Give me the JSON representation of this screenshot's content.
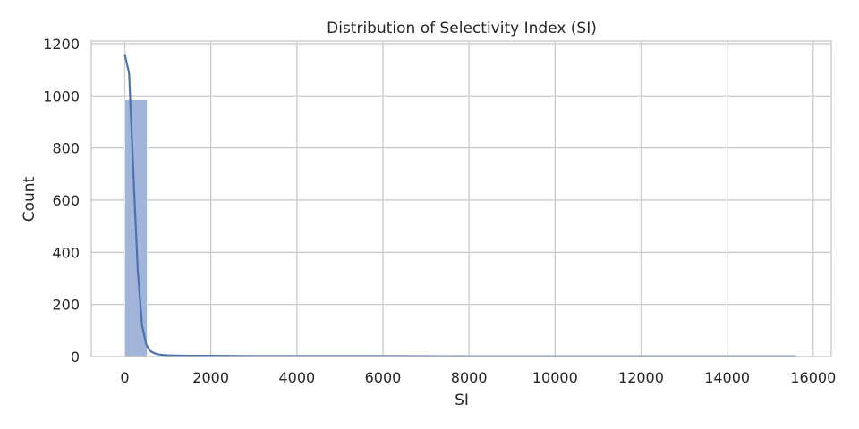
{
  "chart_data": {
    "type": "bar",
    "title": "Distribution of Selectivity Index (SI)",
    "xlabel": "SI",
    "ylabel": "Count",
    "xlim": [
      -780,
      16420
    ],
    "ylim": [
      0,
      1210
    ],
    "x_ticks": [
      0,
      2000,
      4000,
      6000,
      8000,
      10000,
      12000,
      14000,
      16000
    ],
    "x_tick_labels": [
      "0",
      "2000",
      "4000",
      "6000",
      "8000",
      "10000",
      "12000",
      "14000",
      "16000"
    ],
    "y_ticks": [
      0,
      200,
      400,
      600,
      800,
      1000,
      1200
    ],
    "y_tick_labels": [
      "0",
      "200",
      "400",
      "600",
      "800",
      "1000",
      "1200"
    ],
    "grid": true,
    "bin_width": 520,
    "bins": [
      {
        "x0": 0,
        "count": 985
      },
      {
        "x0": 520,
        "count": 3
      },
      {
        "x0": 1040,
        "count": 2
      },
      {
        "x0": 1560,
        "count": 2
      },
      {
        "x0": 2080,
        "count": 1
      },
      {
        "x0": 2600,
        "count": 1
      },
      {
        "x0": 3120,
        "count": 1
      },
      {
        "x0": 3640,
        "count": 1
      },
      {
        "x0": 4160,
        "count": 1
      },
      {
        "x0": 4680,
        "count": 1
      },
      {
        "x0": 5200,
        "count": 1
      },
      {
        "x0": 5720,
        "count": 1
      },
      {
        "x0": 6240,
        "count": 0
      },
      {
        "x0": 6760,
        "count": 0
      },
      {
        "x0": 7280,
        "count": 0
      },
      {
        "x0": 7800,
        "count": 0
      },
      {
        "x0": 8320,
        "count": 0
      },
      {
        "x0": 8840,
        "count": 0
      },
      {
        "x0": 9360,
        "count": 0
      },
      {
        "x0": 9880,
        "count": 0
      },
      {
        "x0": 10400,
        "count": 0
      },
      {
        "x0": 10920,
        "count": 0
      },
      {
        "x0": 11440,
        "count": 1
      },
      {
        "x0": 11960,
        "count": 0
      },
      {
        "x0": 12480,
        "count": 0
      },
      {
        "x0": 13000,
        "count": 0
      },
      {
        "x0": 13520,
        "count": 0
      },
      {
        "x0": 14040,
        "count": 0
      },
      {
        "x0": 14560,
        "count": 0
      },
      {
        "x0": 15080,
        "count": 1
      }
    ],
    "kde": {
      "x": [
        0,
        100,
        200,
        300,
        400,
        500,
        600,
        700,
        800,
        900,
        1000,
        1200,
        1500,
        2000,
        3000,
        4000,
        5000,
        6000,
        8000,
        10000,
        12000,
        14000,
        15600
      ],
      "y": [
        1160,
        1085,
        700,
        330,
        120,
        45,
        20,
        12,
        8,
        6,
        5,
        4,
        3,
        3,
        2,
        2,
        2,
        2,
        1,
        1,
        1,
        1,
        1
      ]
    },
    "colors": {
      "bar_fill": "#a3b4d9",
      "bar_edge": "#ffffff",
      "kde_line": "#4c72b0",
      "grid": "#cccccc",
      "spine": "#cccccc",
      "background": "#ffffff"
    }
  }
}
